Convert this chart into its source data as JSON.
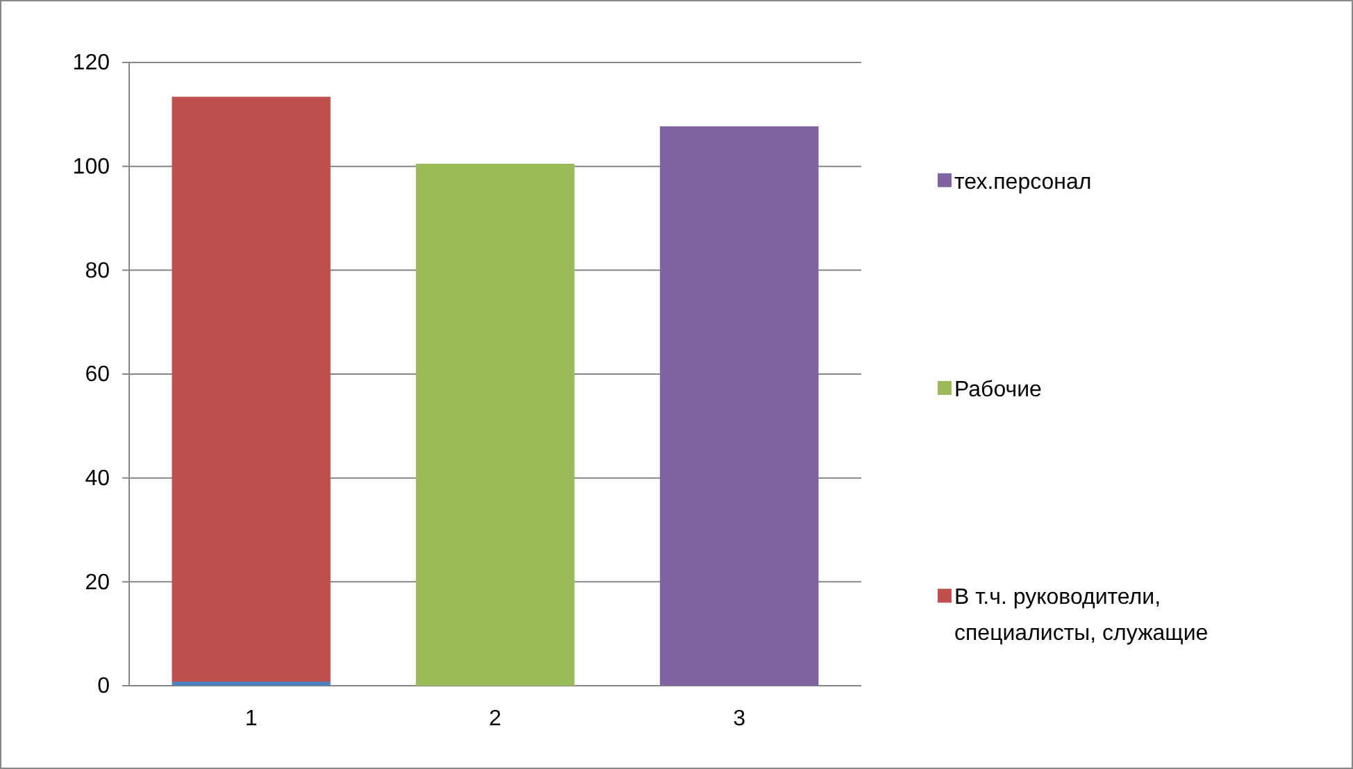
{
  "chart_data": {
    "type": "bar",
    "stacked": true,
    "categories": [
      "1",
      "2",
      "3"
    ],
    "series": [
      {
        "color": "#4f81bd",
        "values": [
          0.8,
          null,
          null
        ]
      },
      {
        "name": "В т.ч. руководители, специалисты, служащие",
        "color": "#c0504d",
        "values": [
          112.6,
          null,
          null
        ]
      },
      {
        "name": "Рабочие",
        "color": "#9bbb59",
        "values": [
          null,
          100.5,
          null
        ]
      },
      {
        "name": "тех.персонал",
        "color": "#8064a2",
        "values": [
          null,
          null,
          107.7
        ]
      }
    ],
    "ylim": [
      0,
      120
    ],
    "yticks": [
      0,
      20,
      40,
      60,
      80,
      100,
      120
    ],
    "grid": "y",
    "legend": "right"
  }
}
